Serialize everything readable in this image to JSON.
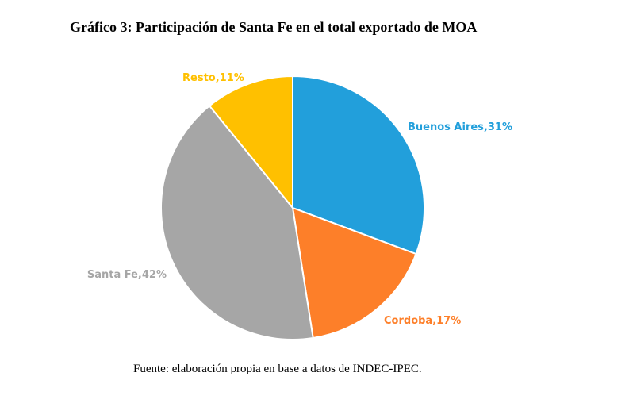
{
  "title": "Gráfico 3: Participación de Santa Fe en el total exportado de MOA",
  "source": "Fuente: elaboración propia en base a datos de INDEC-IPEC.",
  "chart_data": {
    "type": "pie",
    "title": "Gráfico 3: Participación de Santa Fe en el total exportado de MOA",
    "slices": [
      {
        "label": "Buenos Aires",
        "value": 31,
        "display": "Buenos Aires,31%",
        "color": "#229FDB"
      },
      {
        "label": "Cordoba",
        "value": 17,
        "display": "Cordoba,17%",
        "color": "#FD7F29"
      },
      {
        "label": "Santa Fe",
        "value": 42,
        "display": "Santa Fe,42%",
        "color": "#A6A6A6"
      },
      {
        "label": "Resto",
        "value": 11,
        "display": "Resto,11%",
        "color": "#FFC000"
      }
    ]
  }
}
